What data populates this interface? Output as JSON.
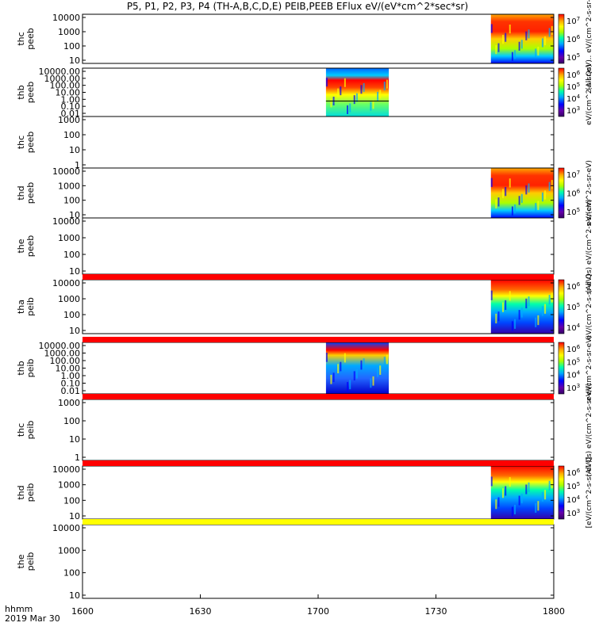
{
  "header": {
    "title": "P5, P1, P2, P3, P4 (TH-A,B,C,D,E) PEIB,PEEB EFlux eV/(eV*cm^2*sec*sr)"
  },
  "footer": {
    "time_label": "hhmm",
    "date_label": "2019 Mar 30"
  },
  "colors": {
    "band_red": "#ff0000",
    "band_yellow": "#ffff00",
    "spectrogram_scale": [
      "#6600aa",
      "#0000ff",
      "#00aaff",
      "#00ffaa",
      "#aaff00",
      "#ffff00",
      "#ffaa00",
      "#ff0000"
    ]
  },
  "chart_data": {
    "type": "heatmap",
    "title": "P5, P1, P2, P3, P4 (TH-A,B,C,D,E) PEIB,PEEB EFlux eV/(eV*cm^2*sec*sr)",
    "x_ticks": [
      "1600",
      "1630",
      "1700",
      "1730",
      "1800"
    ],
    "xlim": [
      "16:00",
      "18:00"
    ],
    "panels": [
      {
        "label1": "thc",
        "label2": "peeb",
        "y_ticks": [
          "10",
          "100",
          "1000",
          "10000"
        ],
        "colorbar_ticks": [
          "10^5",
          "10^6",
          "10^7"
        ],
        "colorbar_label": "(All Qs) ... eV/(cm^2-s-sr-eV)",
        "data_coverage": [
          {
            "start": "17:44",
            "end": "18:00"
          }
        ]
      },
      {
        "label1": "thb",
        "label2": "peeb",
        "y_ticks": [
          "0.01",
          "0.10",
          "1.00",
          "10.00",
          "100.00",
          "1000.00",
          "10000.00"
        ],
        "colorbar_ticks": [
          "10^3",
          "10^4",
          "10^5",
          "10^6"
        ],
        "colorbar_label": "eV/(cm^2-s-sr-eV)",
        "data_coverage": [
          {
            "start": "17:02",
            "end": "17:18"
          }
        ]
      },
      {
        "label1": "thc",
        "label2": "peeb",
        "y_ticks": [
          "1",
          "10",
          "100",
          "1000"
        ],
        "colorbar_ticks": [],
        "data_coverage": []
      },
      {
        "label1": "thd",
        "label2": "peeb",
        "y_ticks": [
          "10",
          "100",
          "1000",
          "10000"
        ],
        "colorbar_ticks": [
          "10^5",
          "10^6",
          "10^7"
        ],
        "colorbar_label": "eV/(cm^2-s-sr-eV)",
        "data_coverage": [
          {
            "start": "17:44",
            "end": "18:00"
          }
        ]
      },
      {
        "label1": "the",
        "label2": "peeb",
        "y_ticks": [
          "10",
          "100",
          "1000",
          "10000"
        ],
        "colorbar_ticks": [],
        "colorbar_label": "(All Qs) eV/(cm^2-s-sr-eV)",
        "data_coverage": []
      },
      {
        "label1": "tha",
        "label2": "peib",
        "y_ticks": [
          "10",
          "100",
          "1000",
          "10000"
        ],
        "colorbar_ticks": [
          "10^4",
          "10^5",
          "10^6"
        ],
        "colorbar_label": "eV/(cm^2-s-sr-eV)",
        "data_coverage": [
          {
            "start": "17:44",
            "end": "18:00"
          }
        ]
      },
      {
        "label1": "thb",
        "label2": "peib",
        "y_ticks": [
          "0.01",
          "0.10",
          "1.00",
          "10.00",
          "100.00",
          "1000.00",
          "10000.00"
        ],
        "colorbar_ticks": [
          "10^3",
          "10^4",
          "10^5",
          "10^6"
        ],
        "colorbar_label": "eV/(cm^2-s-sr-eV)",
        "data_coverage": [
          {
            "start": "17:02",
            "end": "17:18"
          }
        ]
      },
      {
        "label1": "thc",
        "label2": "peib",
        "y_ticks": [
          "1",
          "10",
          "100",
          "1000"
        ],
        "colorbar_ticks": [],
        "colorbar_label": "(All Qs) eV/(cm^2-s-sr-eV)",
        "data_coverage": []
      },
      {
        "label1": "thd",
        "label2": "peib",
        "y_ticks": [
          "10",
          "100",
          "1000",
          "10000"
        ],
        "colorbar_ticks": [
          "10^3",
          "10^4",
          "10^5",
          "10^6"
        ],
        "colorbar_label": "[eV/(cm^2-s-sr-eV)]",
        "data_coverage": [
          {
            "start": "17:44",
            "end": "18:00"
          }
        ]
      },
      {
        "label1": "the",
        "label2": "peib",
        "y_ticks": [
          "10",
          "100",
          "1000",
          "10000"
        ],
        "colorbar_ticks": [],
        "data_coverage": []
      }
    ],
    "bands": [
      "red",
      "red",
      "red",
      "red",
      "yellow"
    ]
  }
}
